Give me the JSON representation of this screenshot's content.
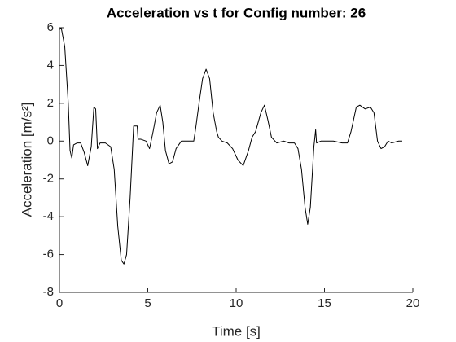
{
  "chart_data": {
    "type": "line",
    "title": "Acceleration vs t for Config number: 26",
    "xlabel": "Time [s]",
    "ylabel": "Acceleration [m/s²]",
    "xlim": [
      0,
      20
    ],
    "xticks": [
      0,
      5,
      10,
      15,
      20
    ],
    "ylim": [
      -8,
      6
    ],
    "yticks": [
      -8,
      -6,
      -4,
      -2,
      0,
      2,
      4,
      6
    ],
    "grid": false,
    "series": [
      {
        "color": "#000000",
        "x": [
          0,
          0.1,
          0.3,
          0.5,
          0.6,
          0.7,
          0.8,
          1.0,
          1.2,
          1.4,
          1.6,
          1.8,
          1.95,
          2.05,
          2.15,
          2.3,
          2.6,
          2.9,
          3.1,
          3.3,
          3.5,
          3.65,
          3.8,
          4.0,
          4.2,
          4.4,
          4.45,
          4.6,
          4.9,
          5.1,
          5.3,
          5.5,
          5.7,
          5.85,
          6.0,
          6.2,
          6.4,
          6.6,
          6.9,
          7.2,
          7.4,
          7.6,
          7.7,
          7.9,
          8.1,
          8.3,
          8.5,
          8.7,
          8.9,
          9.0,
          9.2,
          9.5,
          9.8,
          10.1,
          10.4,
          10.7,
          10.9,
          11.1,
          11.4,
          11.6,
          11.8,
          12.0,
          12.3,
          12.7,
          13.0,
          13.3,
          13.5,
          13.7,
          13.9,
          14.05,
          14.2,
          14.4,
          14.5,
          14.55,
          14.8,
          15.5,
          16.0,
          16.3,
          16.5,
          16.8,
          17.0,
          17.3,
          17.6,
          17.8,
          18.0,
          18.2,
          18.4,
          18.6,
          18.8,
          19.2,
          19.4
        ],
        "values": [
          5.9,
          6,
          5,
          2,
          -0.5,
          -0.9,
          -0.2,
          -0.1,
          -0.1,
          -0.6,
          -1.3,
          -0.3,
          1.8,
          1.7,
          -0.4,
          -0.1,
          -0.1,
          -0.3,
          -1.5,
          -4.5,
          -6.3,
          -6.5,
          -6,
          -3,
          0.8,
          0.8,
          0.1,
          0.1,
          0,
          -0.4,
          0.5,
          1.5,
          1.9,
          1,
          -0.5,
          -1.2,
          -1.1,
          -0.4,
          0,
          0,
          0,
          0,
          0.6,
          2,
          3.3,
          3.8,
          3.3,
          1.5,
          0.5,
          0.2,
          0,
          -0.1,
          -0.4,
          -1.0,
          -1.3,
          -0.5,
          0.2,
          0.5,
          1.5,
          1.9,
          1.1,
          0.2,
          -0.1,
          0,
          -0.1,
          -0.1,
          -0.4,
          -1.5,
          -3.5,
          -4.4,
          -3.5,
          -0.3,
          0.6,
          -0.1,
          0,
          0,
          -0.1,
          -0.1,
          0.5,
          1.8,
          1.9,
          1.7,
          1.8,
          1.5,
          0,
          -0.4,
          -0.3,
          0,
          -0.1,
          0,
          0
        ]
      }
    ]
  }
}
